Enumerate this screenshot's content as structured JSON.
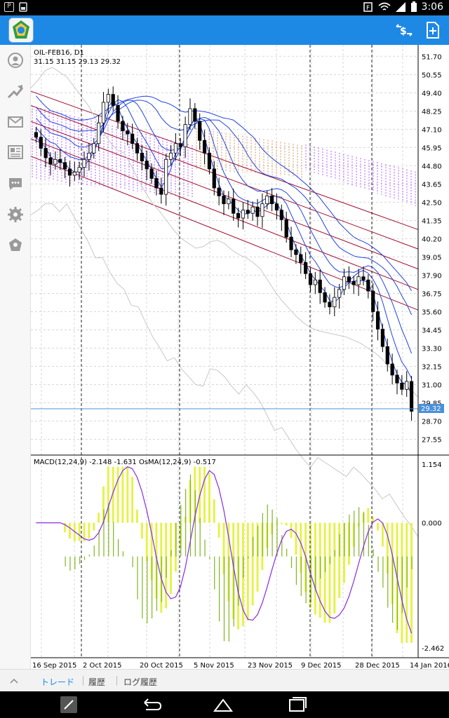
{
  "status_bar": {
    "time": "3:06",
    "left_icons": [
      "P"
    ]
  },
  "action_bar": {
    "icons": [
      "sync-icon",
      "new-order-icon"
    ]
  },
  "sidebar": {
    "icons": [
      "quotes-icon",
      "chart-icon",
      "mail-icon",
      "news-icon",
      "chat-icon",
      "settings-icon",
      "community-icon"
    ]
  },
  "chart": {
    "symbol_title": "OIL-FEB16, D1",
    "ohlc_text": "31.15 31.15 29.13 29.32",
    "current_price": "29.32",
    "price_ticks": [
      "51.70",
      "50.55",
      "49.40",
      "48.25",
      "47.10",
      "45.95",
      "44.80",
      "43.65",
      "42.50",
      "41.35",
      "40.20",
      "39.05",
      "37.90",
      "36.75",
      "35.60",
      "34.45",
      "33.30",
      "32.15",
      "31.00",
      "29.85",
      "28.70",
      "27.55"
    ],
    "macd_label": "MACD(12,24,9) -2.148 -1.631 OsMA(12,24,9) -0.517",
    "macd_ticks": [
      "1.154",
      "0.000",
      "-2.462"
    ],
    "date_labels": [
      "16 Sep 2015",
      "2 Oct 2015",
      "20 Oct 2015",
      "5 Nov 2015",
      "23 Nov 2015",
      "9 Dec 2015",
      "28 Dec 2015",
      "14 Jan 2016"
    ],
    "colors": {
      "grid": "#d7d7d7",
      "ichimoku_cloud_bull": "#9b30ff",
      "ichimoku_cloud_bear": "#c87533",
      "envelope": "#a0102e",
      "ma_blue": "#2244dd",
      "bollinger": "#c8c8c8",
      "osma_bar": "#e6f24a",
      "macd_bar": "#7fb520",
      "signal": "#8b2be2",
      "price_line": "#4a90d9"
    }
  },
  "chart_data": {
    "type": "candlestick",
    "symbol": "OIL-FEB16",
    "timeframe": "D1",
    "last": {
      "open": 31.15,
      "high": 31.15,
      "low": 29.13,
      "close": 29.32
    },
    "closes": [
      46.6,
      45.9,
      45.3,
      44.9,
      45.2,
      45.0,
      44.6,
      44.2,
      44.4,
      44.7,
      45.2,
      45.6,
      46.2,
      47.5,
      48.8,
      49.3,
      48.6,
      47.6,
      47.0,
      46.8,
      46.2,
      45.6,
      45.1,
      44.6,
      44.0,
      43.4,
      43.0,
      45.2,
      45.6,
      46.2,
      46.0,
      47.4,
      48.4,
      47.6,
      46.4,
      45.6,
      44.6,
      43.4,
      42.9,
      42.4,
      42.7,
      41.8,
      41.5,
      42.0,
      41.8,
      42.2,
      41.6,
      42.4,
      42.9,
      42.4,
      42.0,
      41.4,
      40.3,
      39.5,
      39.2,
      38.7,
      38.0,
      37.3,
      37.6,
      36.8,
      36.2,
      35.9,
      36.5,
      37.0,
      37.8,
      37.5,
      37.3,
      37.8,
      37.6,
      36.9,
      35.6,
      34.5,
      33.4,
      32.3,
      31.6,
      31.1,
      30.7,
      31.2,
      29.32
    ],
    "bb_upper": [
      49.7,
      50.2,
      50.8,
      51.0,
      50.7,
      50.4,
      49.8,
      49.2,
      48.6,
      47.8,
      47.0,
      46.3,
      45.8,
      45.6,
      44.8,
      43.9,
      43.1,
      42.4,
      41.9,
      41.3,
      40.7,
      40.2,
      39.9,
      39.6,
      39.7,
      40.0,
      40.1,
      39.9,
      39.5,
      39.2,
      39.0,
      38.7,
      38.3,
      37.6,
      36.9,
      36.3,
      35.8,
      35.3,
      34.9,
      34.6,
      34.4,
      34.3,
      34.2,
      34.1,
      34.0,
      33.8,
      33.6,
      33.3,
      33.0,
      32.6,
      32.1,
      31.6,
      31.1,
      30.7,
      30.2
    ],
    "ylim": [
      27.0,
      52.2
    ],
    "macd_ylim": [
      -2.462,
      1.154
    ]
  }
}
